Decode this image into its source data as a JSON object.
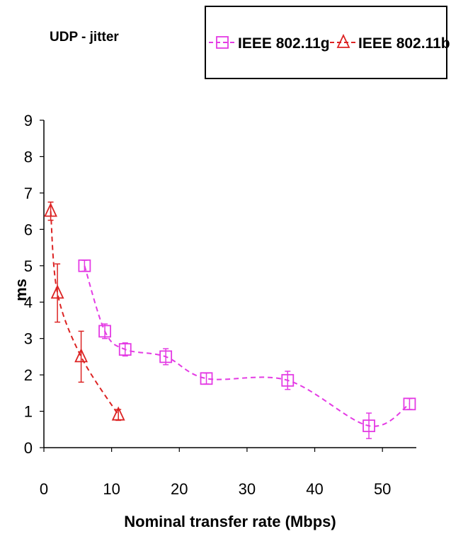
{
  "chart_data": {
    "type": "line",
    "title": "UDP - jitter",
    "xlabel": "Nominal transfer rate (Mbps)",
    "ylabel": "ms",
    "xlim": [
      0,
      55
    ],
    "ylim": [
      0,
      9
    ],
    "xticks": [
      0,
      10,
      20,
      30,
      40,
      50
    ],
    "yticks": [
      0,
      1,
      2,
      3,
      4,
      5,
      6,
      7,
      8,
      9
    ],
    "legend_position": "top-right",
    "grid": false,
    "series": [
      {
        "name": "IEEE 802.11g",
        "color": "#e43be4",
        "marker": "square",
        "line_style": "dashed",
        "x": [
          6,
          9,
          12,
          18,
          24,
          36,
          48,
          54
        ],
        "y": [
          5.0,
          3.2,
          2.7,
          2.5,
          1.9,
          1.85,
          0.6,
          1.2
        ],
        "err": [
          0.15,
          0.2,
          0.18,
          0.22,
          0.15,
          0.25,
          0.35,
          0.15
        ]
      },
      {
        "name": "IEEE 802.11b",
        "color": "#dc2323",
        "marker": "triangle",
        "line_style": "dashed",
        "x": [
          1,
          2,
          5.5,
          11
        ],
        "y": [
          6.5,
          4.25,
          2.5,
          0.9
        ],
        "err": [
          0.25,
          0.8,
          0.7,
          0.15
        ]
      }
    ]
  }
}
